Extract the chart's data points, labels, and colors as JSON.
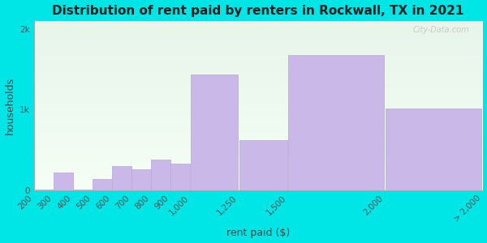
{
  "title": "Distribution of rent paid by renters in Rockwall, TX in 2021",
  "xlabel": "rent paid ($)",
  "ylabel": "households",
  "background_color": "#00e5e5",
  "plot_bg_top": "#e8f5e9",
  "plot_bg_bottom": "#f5fff5",
  "bar_color": "#c9b8e8",
  "bar_edge_color": "#b8a5d8",
  "bin_edges": [
    200,
    300,
    400,
    500,
    600,
    700,
    800,
    900,
    1000,
    1250,
    1500,
    2000,
    2500
  ],
  "values": [
    10,
    220,
    10,
    135,
    300,
    260,
    380,
    330,
    1430,
    620,
    1680,
    1010
  ],
  "xtick_positions": [
    200,
    300,
    400,
    500,
    600,
    700,
    800,
    900,
    1000,
    1250,
    1500,
    2000
  ],
  "xtick_labels": [
    "200",
    "300",
    "400",
    "500",
    "600",
    "700",
    "800",
    "900",
    "1,000",
    "1,250",
    "1,500",
    "2,000"
  ],
  "last_label": "> 2,000",
  "ylim": [
    0,
    2100
  ],
  "yticks": [
    0,
    1000,
    2000
  ],
  "ytick_labels": [
    "0",
    "1k",
    "2k"
  ],
  "title_fontsize": 11,
  "axis_label_fontsize": 9,
  "tick_fontsize": 7.5
}
